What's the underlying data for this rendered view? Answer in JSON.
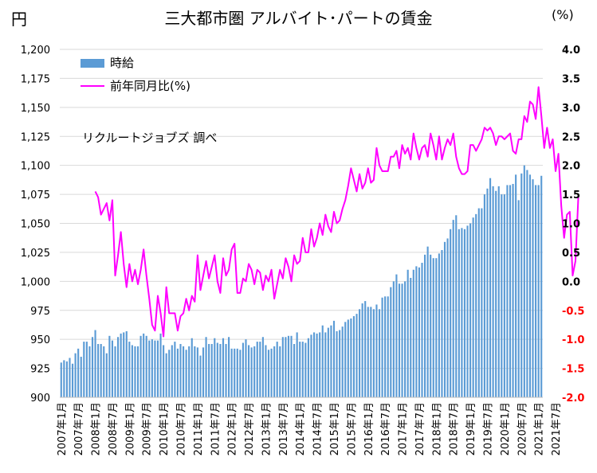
{
  "chart_data": {
    "type": "bar",
    "title": "三大都市圏  アルバイト･パートの賃金",
    "y_left_unit": "円",
    "y_right_unit": "(%)",
    "annotation": "リクルートジョブズ  調べ",
    "legend_position": "top-left",
    "ylim_left": [
      900,
      1200
    ],
    "ylim_right": [
      -2.0,
      4.0
    ],
    "yticks_left": [
      "900",
      "925",
      "950",
      "975",
      "1,000",
      "1,025",
      "1,050",
      "1,075",
      "1,100",
      "1,125",
      "1,150",
      "1,175",
      "1,200"
    ],
    "yticks_right": [
      "-2.0",
      "-1.5",
      "-1.0",
      "-0.5",
      "0.0",
      "0.5",
      "1.0",
      "1.5",
      "2.0",
      "2.5",
      "3.0",
      "3.5",
      "4.0"
    ],
    "xticks": [
      "2007年1月",
      "2007年7月",
      "2008年1月",
      "2008年7月",
      "2009年1月",
      "2009年7月",
      "2010年1月",
      "2010年7月",
      "2011年1月",
      "2011年7月",
      "2012年1月",
      "2012年7月",
      "2013年1月",
      "2013年7月",
      "2014年1月",
      "2014年7月",
      "2015年1月",
      "2015年7月",
      "2016年1月",
      "2016年7月",
      "2017年1月",
      "2017年7月",
      "2018年1月",
      "2018年7月",
      "2019年1月",
      "2019年7月",
      "2020年1月",
      "2020年7月",
      "2021年1月",
      "2021年7月"
    ],
    "series": [
      {
        "name": "時給",
        "type": "bar",
        "axis": "left",
        "color": "#5b9bd5",
        "values": [
          930,
          932,
          931,
          934,
          929,
          938,
          942,
          935,
          948,
          948,
          944,
          952,
          958,
          946,
          946,
          944,
          938,
          953,
          949,
          944,
          952,
          955,
          956,
          957,
          948,
          945,
          944,
          944,
          953,
          955,
          953,
          949,
          950,
          949,
          949,
          955,
          945,
          938,
          941,
          945,
          948,
          942,
          946,
          944,
          941,
          944,
          951,
          944,
          943,
          936,
          943,
          952,
          946,
          946,
          951,
          947,
          946,
          951,
          946,
          952,
          942,
          942,
          942,
          941,
          947,
          950,
          945,
          943,
          944,
          948,
          948,
          952,
          945,
          941,
          942,
          944,
          948,
          944,
          952,
          952,
          953,
          953,
          946,
          956,
          948,
          948,
          947,
          951,
          954,
          956,
          955,
          956,
          962,
          956,
          960,
          962,
          966,
          957,
          958,
          961,
          965,
          967,
          968,
          970,
          972,
          976,
          981,
          983,
          978,
          978,
          976,
          980,
          976,
          986,
          987,
          987,
          995,
          1000,
          1006,
          998,
          998,
          1000,
          1010,
          1003,
          1010,
          1013,
          1012,
          1016,
          1023,
          1030,
          1023,
          1020,
          1020,
          1024,
          1027,
          1034,
          1037,
          1045,
          1053,
          1057,
          1045,
          1046,
          1045,
          1048,
          1050,
          1055,
          1058,
          1063,
          1063,
          1075,
          1080,
          1089,
          1082,
          1078,
          1082,
          1075,
          1075,
          1083,
          1083,
          1084,
          1092,
          1070,
          1093,
          1100,
          1096,
          1092,
          1088,
          1083,
          1083,
          1091
        ]
      },
      {
        "name": "前年同月比(%)",
        "type": "line",
        "axis": "right",
        "color": "#ff00ff",
        "values": [
          null,
          null,
          null,
          null,
          null,
          null,
          null,
          null,
          null,
          null,
          null,
          null,
          1.55,
          1.45,
          1.15,
          1.25,
          1.35,
          1.05,
          1.4,
          0.1,
          0.45,
          0.85,
          0.3,
          -0.1,
          0.3,
          0.0,
          0.2,
          -0.05,
          0.2,
          0.55,
          0.1,
          -0.3,
          -0.75,
          -0.85,
          -0.25,
          -0.55,
          -0.95,
          -0.1,
          -0.55,
          -0.55,
          -0.55,
          -0.85,
          -0.6,
          -0.55,
          -0.3,
          -0.5,
          -0.25,
          -0.35,
          0.45,
          -0.15,
          0.1,
          0.35,
          0.05,
          0.25,
          0.45,
          0.0,
          -0.2,
          0.4,
          0.1,
          0.2,
          0.55,
          0.65,
          -0.2,
          -0.2,
          0.05,
          0.0,
          0.3,
          0.2,
          -0.05,
          0.2,
          0.15,
          -0.15,
          0.1,
          0.0,
          0.2,
          -0.3,
          -0.05,
          0.2,
          0.05,
          0.4,
          0.25,
          0.0,
          0.45,
          0.3,
          0.35,
          0.75,
          0.5,
          0.5,
          0.9,
          0.6,
          0.75,
          1.0,
          0.8,
          1.15,
          0.95,
          0.85,
          1.2,
          1.0,
          1.05,
          1.25,
          1.4,
          1.65,
          1.95,
          1.75,
          1.55,
          1.85,
          1.6,
          1.7,
          1.95,
          1.7,
          1.75,
          2.3,
          2.0,
          1.9,
          1.9,
          1.9,
          2.15,
          2.15,
          2.25,
          1.95,
          2.35,
          2.2,
          2.3,
          2.1,
          2.55,
          2.3,
          2.1,
          2.3,
          2.35,
          2.15,
          2.55,
          2.35,
          2.1,
          2.5,
          2.1,
          2.3,
          2.45,
          2.35,
          2.55,
          2.15,
          1.95,
          1.85,
          1.85,
          1.9,
          2.35,
          2.35,
          2.25,
          2.35,
          2.45,
          2.65,
          2.6,
          2.65,
          2.55,
          2.35,
          2.5,
          2.5,
          2.45,
          2.5,
          2.55,
          2.25,
          2.2,
          2.45,
          2.45,
          2.85,
          2.75,
          3.1,
          3.05,
          2.8,
          3.35,
          2.85,
          2.3,
          2.65,
          2.3,
          2.45,
          1.9,
          2.2,
          1.3,
          0.75,
          1.15,
          1.2,
          0.1,
          0.35,
          1.45
        ]
      }
    ]
  }
}
